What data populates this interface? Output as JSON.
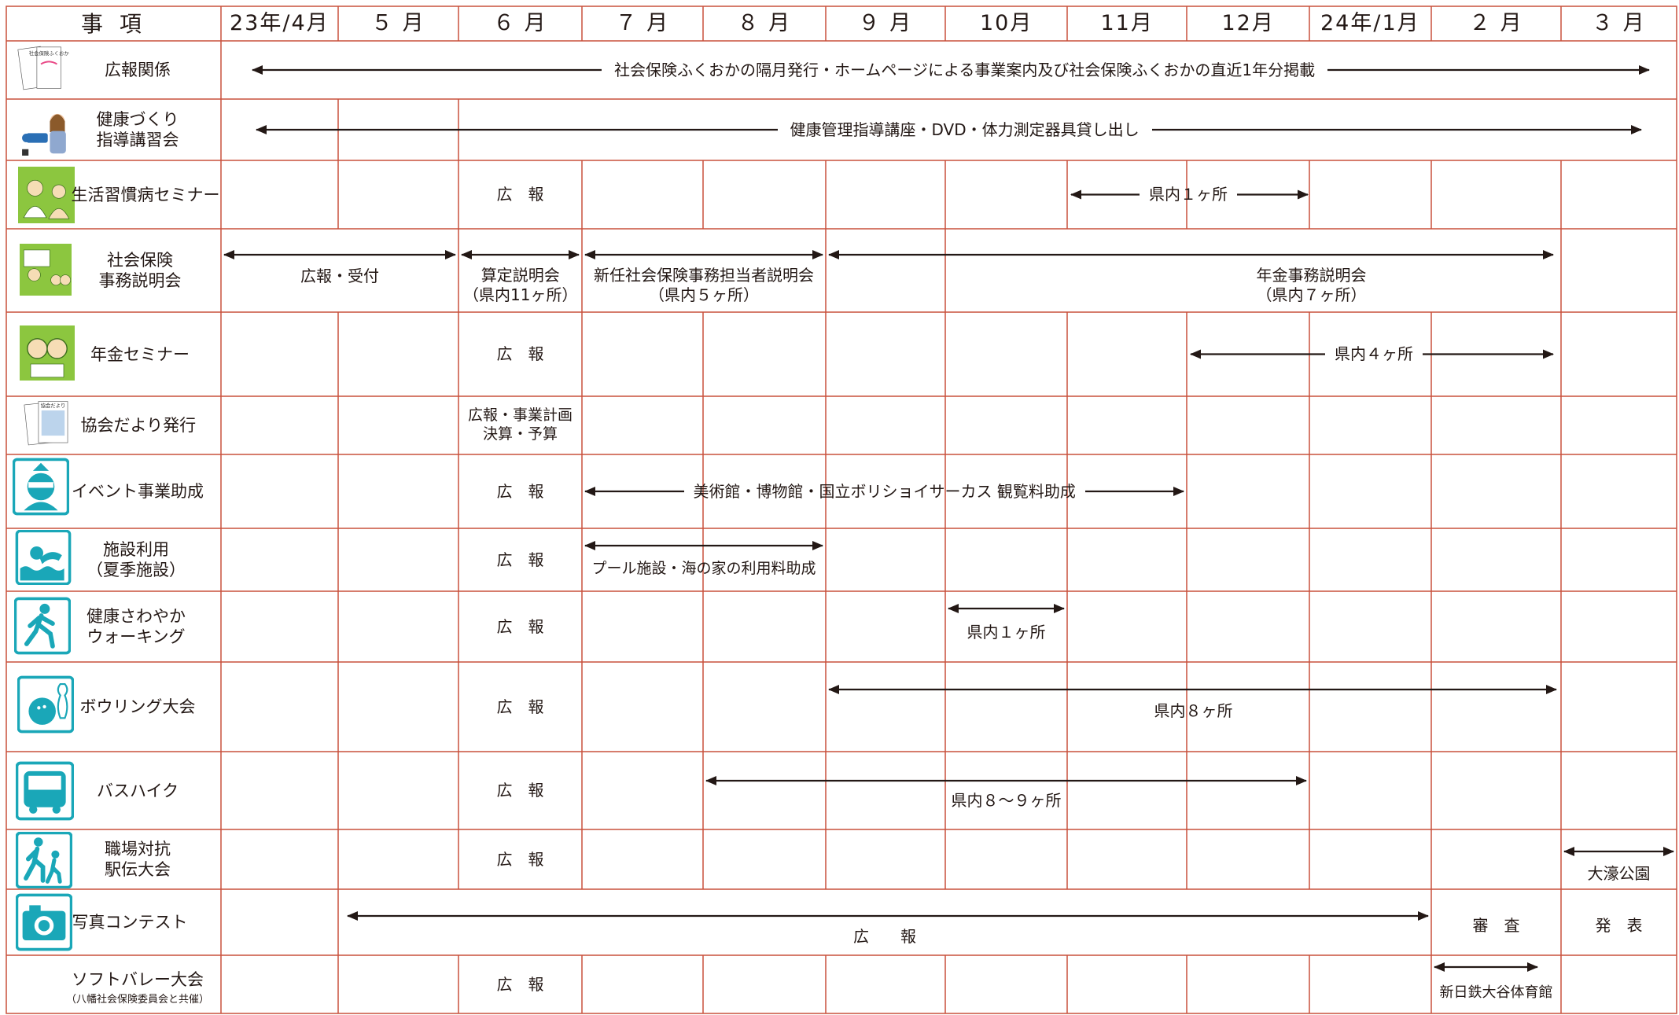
{
  "header": {
    "item_label": "事 項",
    "months": [
      "23年/4月",
      "５ 月",
      "６ 月",
      "７ 月",
      "８ 月",
      "９ 月",
      "10月",
      "11月",
      "12月",
      "24年/1月",
      "２ 月",
      "３ 月"
    ]
  },
  "rows": [
    {
      "id": "kouhou",
      "name": "広報関係",
      "icon": "newsletter-icon",
      "icon_texts": [
        "社会保険ふくおか",
        "社会保険ふくおか"
      ]
    },
    {
      "id": "kenko",
      "name": "健康づくり\n指導講習会",
      "icon": "instructor-icon"
    },
    {
      "id": "seikatsu",
      "name": "生活習慣病セミナー",
      "icon": "doctor-consultation-icon"
    },
    {
      "id": "jimu",
      "name": "社会保険\n事務説明会",
      "icon": "presentation-icon"
    },
    {
      "id": "nenkin",
      "name": "年金セミナー",
      "icon": "elderly-couple-icon"
    },
    {
      "id": "dayori",
      "name": "協会だより発行",
      "icon": "newsletter-pages-icon",
      "icon_texts": [
        "協会",
        "協会だより"
      ]
    },
    {
      "id": "event",
      "name": "イベント事業助成",
      "icon": "mascot-icon"
    },
    {
      "id": "shisetsu",
      "name": "施設利用\n（夏季施設）",
      "icon": "swimmer-icon"
    },
    {
      "id": "walking",
      "name": "健康さわやか\nウォーキング",
      "icon": "walker-icon"
    },
    {
      "id": "bowling",
      "name": "ボウリング大会",
      "icon": "bowling-icon"
    },
    {
      "id": "bus",
      "name": "バスハイク",
      "icon": "bus-icon"
    },
    {
      "id": "ekiden",
      "name": "職場対抗\n駅伝大会",
      "icon": "runners-icon"
    },
    {
      "id": "photo",
      "name": "写真コンテスト",
      "icon": "camera-icon"
    },
    {
      "id": "volley",
      "name": "ソフトバレー大会",
      "sub": "（八幡社会保険委員会と共催）",
      "icon": ""
    }
  ],
  "texts": {
    "kouhou_main": "社会保険ふくおかの隔月発行・ホームページによる事業案内及び社会保険ふくおかの直近1年分掲載",
    "kenko_main": "健康管理指導講座・DVD・体力測定器具貸し出し",
    "seikatsu_pr": "広　報",
    "seikatsu_nov": "県内１ヶ所",
    "jimu_apr": "広報・受付",
    "jimu_may": "算定説明会\n（県内11ヶ所）",
    "jimu_jul": "新任社会保険事務担当者説明会\n（県内５ヶ所）",
    "jimu_oct": "年金事務説明会\n（県内７ヶ所）",
    "nenkin_pr": "広　報",
    "nenkin_dec": "県内４ヶ所",
    "dayori_jun": "広報・事業計画\n決算・予算",
    "event_pr": "広　報",
    "event_main": "美術館・博物館・国立ボリショイサーカス 観覧料助成",
    "shisetsu_pr": "広　報",
    "shisetsu_main": "プール施設・海の家の利用料助成",
    "walking_pr": "広　報",
    "walking_oct": "県内１ヶ所",
    "bowling_pr": "広　報",
    "bowling_main": "県内８ヶ所",
    "bus_pr": "広　報",
    "bus_main": "県内８～９ヶ所",
    "ekiden_pr": "広　報",
    "ekiden_mar": "大濠公園",
    "photo_pr": "広　　報",
    "photo_feb": "審　査",
    "photo_mar": "発　表",
    "volley_pr": "広　報",
    "volley_feb": "新日鉄大谷体育館"
  },
  "colors": {
    "grid": "#c8503c",
    "text": "#231815",
    "icon_green": "#8cc63f",
    "icon_teal": "#1aa7b8",
    "arrow": "#231815"
  }
}
